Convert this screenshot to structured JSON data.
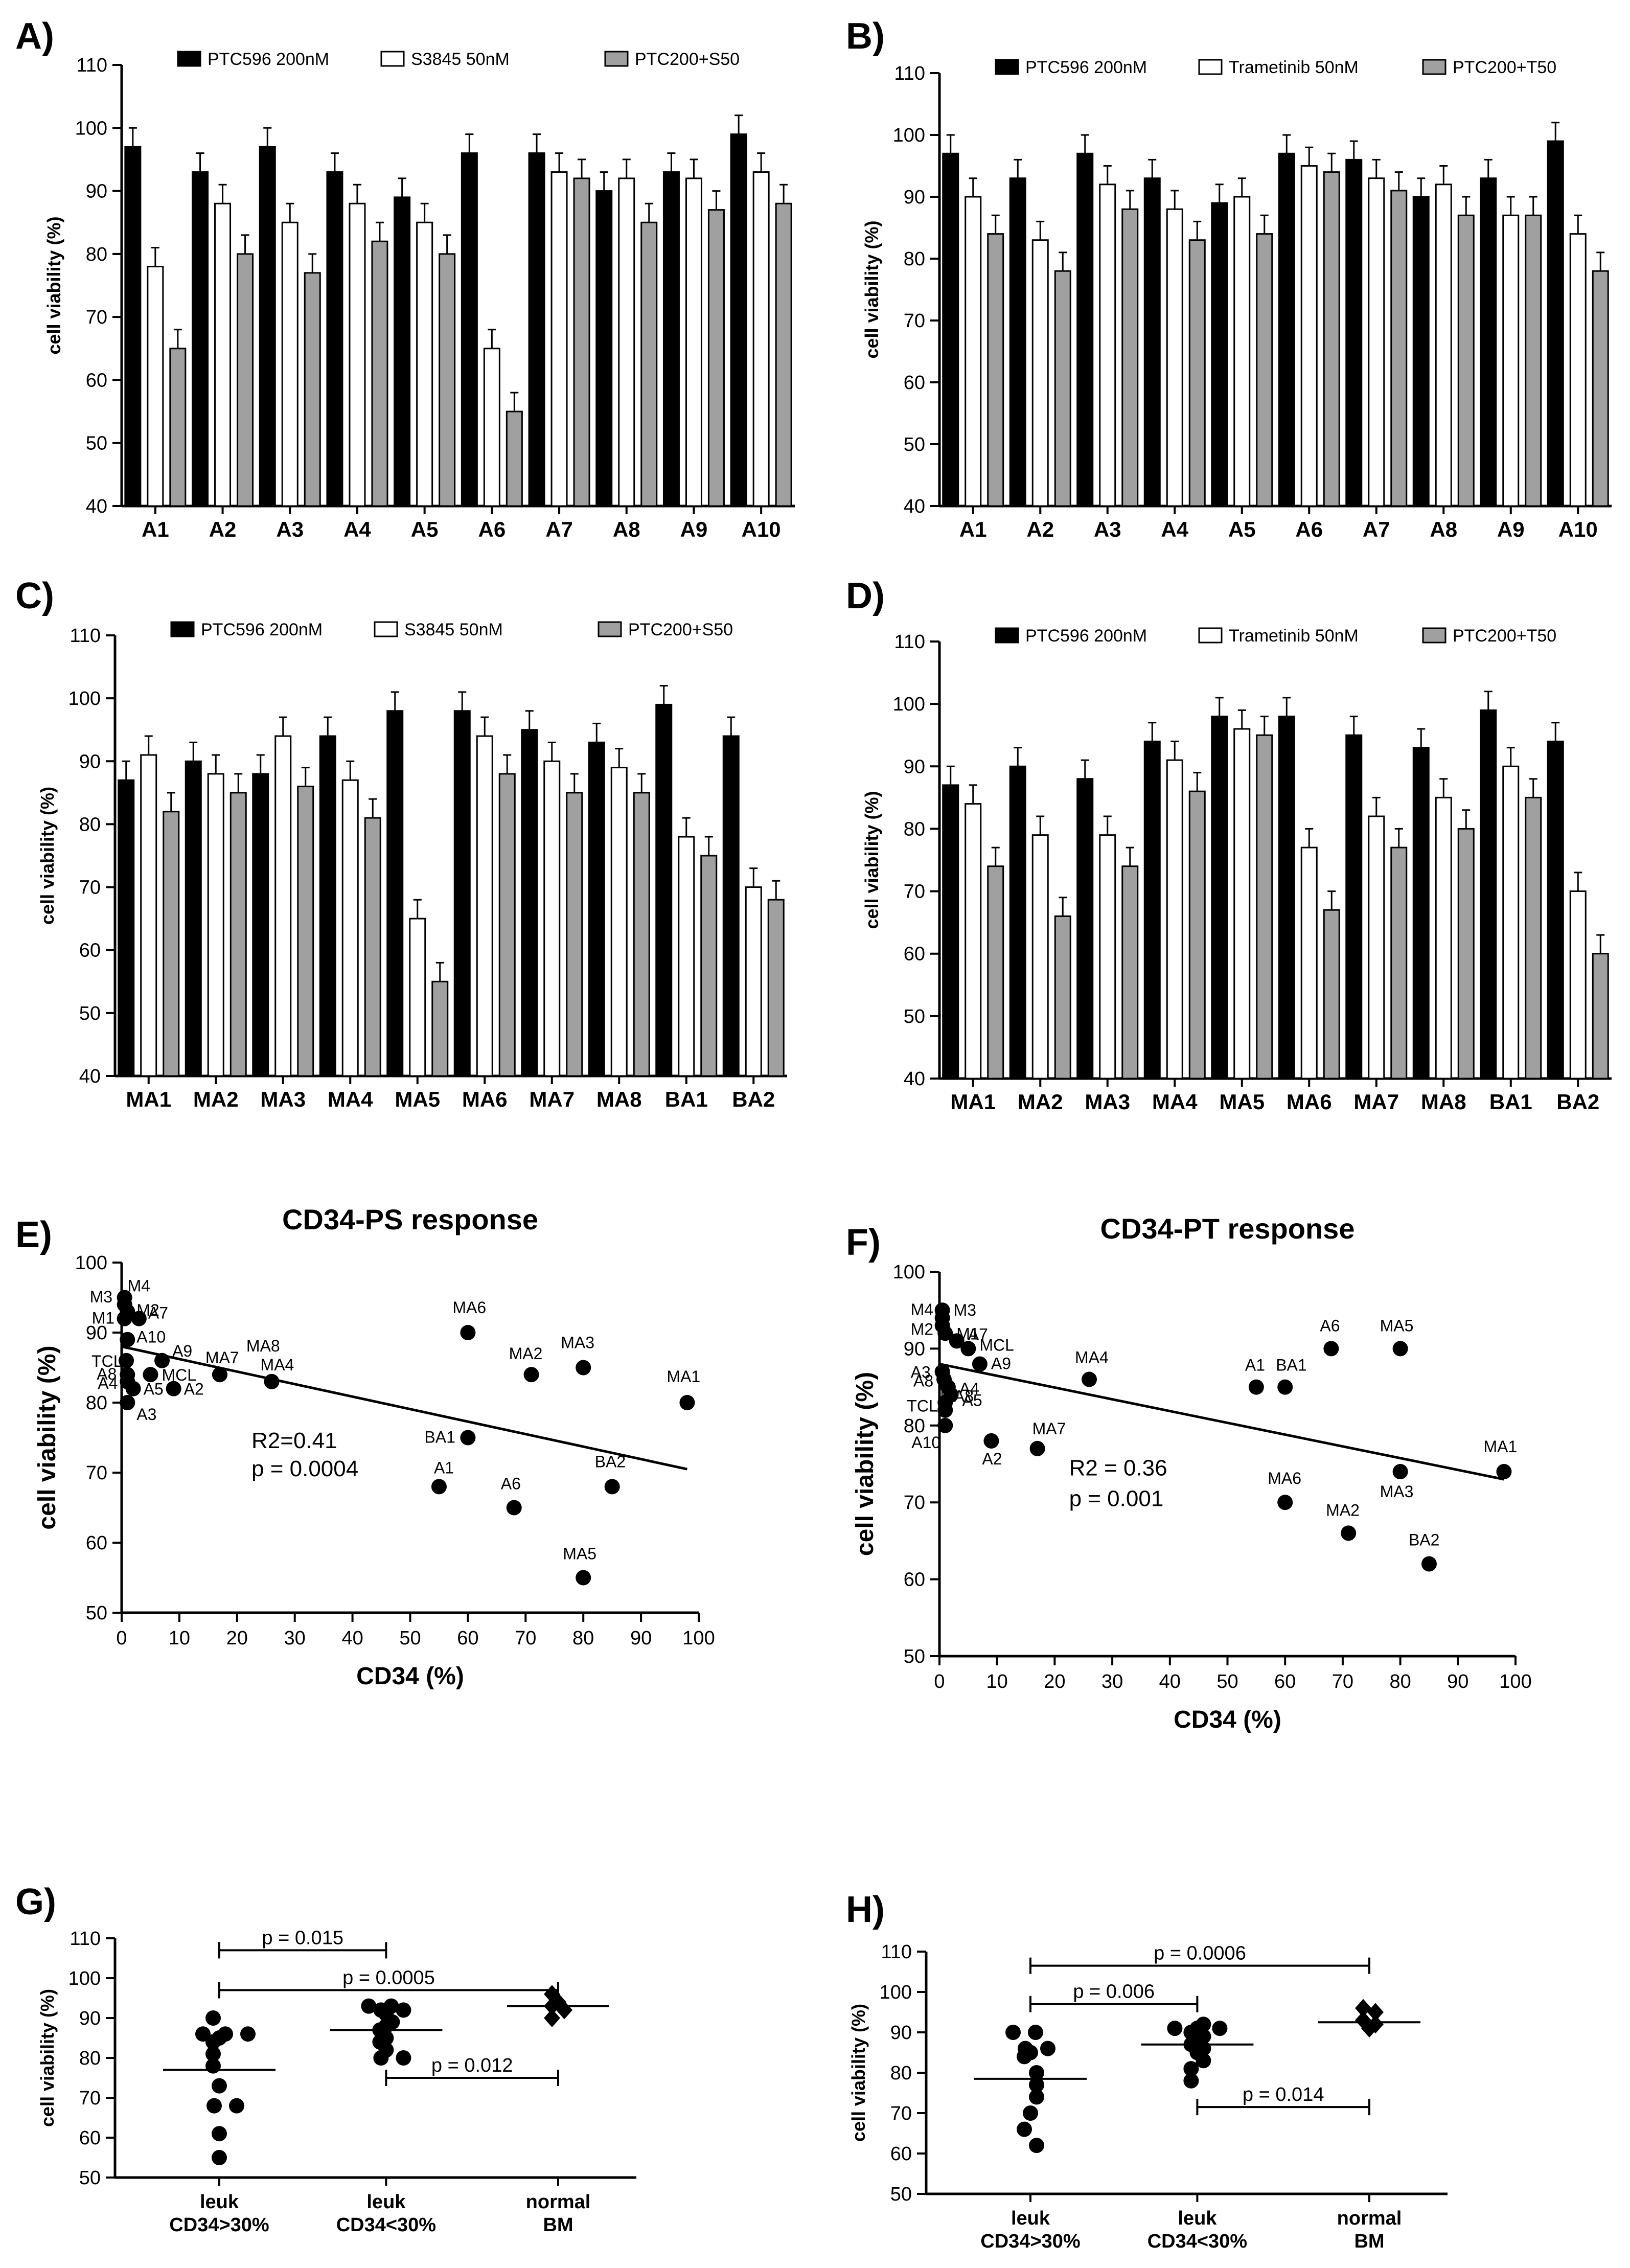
{
  "chart_data": [
    {
      "panel": "A)",
      "type": "bar",
      "ylabel": "cell viability (%)",
      "ylim": [
        40,
        110
      ],
      "yticks": [
        40,
        50,
        60,
        70,
        80,
        90,
        100,
        110
      ],
      "categories": [
        "A1",
        "A2",
        "A3",
        "A4",
        "A5",
        "A6",
        "A7",
        "A8",
        "A9",
        "A10"
      ],
      "series": [
        {
          "name": "PTC596 200nM",
          "color": "#000000",
          "values": [
            97,
            93,
            97,
            93,
            89,
            96,
            96,
            90,
            93,
            99
          ],
          "errors": [
            3,
            3,
            3,
            3,
            3,
            3,
            3,
            3,
            3,
            3
          ]
        },
        {
          "name": "S3845 50nM",
          "color": "#ffffff",
          "values": [
            78,
            88,
            85,
            88,
            85,
            65,
            93,
            92,
            92,
            93
          ],
          "errors": [
            3,
            3,
            3,
            3,
            3,
            3,
            3,
            3,
            3,
            3
          ]
        },
        {
          "name": "PTC200+S50",
          "color": "#a0a0a0",
          "values": [
            65,
            80,
            77,
            82,
            80,
            55,
            92,
            85,
            87,
            88
          ],
          "errors": [
            3,
            3,
            3,
            3,
            3,
            3,
            3,
            3,
            3,
            3
          ]
        }
      ]
    },
    {
      "panel": "B)",
      "type": "bar",
      "ylabel": "cell viability (%)",
      "ylim": [
        40,
        110
      ],
      "yticks": [
        40,
        50,
        60,
        70,
        80,
        90,
        100,
        110
      ],
      "categories": [
        "A1",
        "A2",
        "A3",
        "A4",
        "A5",
        "A6",
        "A7",
        "A8",
        "A9",
        "A10"
      ],
      "series": [
        {
          "name": "PTC596 200nM",
          "color": "#000000",
          "values": [
            97,
            93,
            97,
            93,
            89,
            97,
            96,
            90,
            93,
            99
          ],
          "errors": [
            3,
            3,
            3,
            3,
            3,
            3,
            3,
            3,
            3,
            3
          ]
        },
        {
          "name": "Trametinib 50nM",
          "color": "#ffffff",
          "values": [
            90,
            83,
            92,
            88,
            90,
            95,
            93,
            92,
            87,
            84
          ],
          "errors": [
            3,
            3,
            3,
            3,
            3,
            3,
            3,
            3,
            3,
            3
          ]
        },
        {
          "name": "PTC200+T50",
          "color": "#a0a0a0",
          "values": [
            84,
            78,
            88,
            83,
            84,
            94,
            91,
            87,
            87,
            78
          ],
          "errors": [
            3,
            3,
            3,
            3,
            3,
            3,
            3,
            3,
            3,
            3
          ]
        }
      ]
    },
    {
      "panel": "C)",
      "type": "bar",
      "ylabel": "cell viability (%)",
      "ylim": [
        40,
        110
      ],
      "yticks": [
        40,
        50,
        60,
        70,
        80,
        90,
        100,
        110
      ],
      "categories": [
        "MA1",
        "MA2",
        "MA3",
        "MA4",
        "MA5",
        "MA6",
        "MA7",
        "MA8",
        "BA1",
        "BA2"
      ],
      "series": [
        {
          "name": "PTC596 200nM",
          "color": "#000000",
          "values": [
            87,
            90,
            88,
            94,
            98,
            98,
            95,
            93,
            99,
            94
          ],
          "errors": [
            3,
            3,
            3,
            3,
            3,
            3,
            3,
            3,
            3,
            3
          ]
        },
        {
          "name": "S3845 50nM",
          "color": "#ffffff",
          "values": [
            91,
            88,
            94,
            87,
            65,
            94,
            90,
            89,
            78,
            70
          ],
          "errors": [
            3,
            3,
            3,
            3,
            3,
            3,
            3,
            3,
            3,
            3
          ]
        },
        {
          "name": "PTC200+S50",
          "color": "#a0a0a0",
          "values": [
            82,
            85,
            86,
            81,
            55,
            88,
            85,
            85,
            75,
            68
          ],
          "errors": [
            3,
            3,
            3,
            3,
            3,
            3,
            3,
            3,
            3,
            3
          ]
        }
      ]
    },
    {
      "panel": "D)",
      "type": "bar",
      "ylabel": "cell viability (%)",
      "ylim": [
        40,
        110
      ],
      "yticks": [
        40,
        50,
        60,
        70,
        80,
        90,
        100,
        110
      ],
      "categories": [
        "MA1",
        "MA2",
        "MA3",
        "MA4",
        "MA5",
        "MA6",
        "MA7",
        "MA8",
        "BA1",
        "BA2"
      ],
      "series": [
        {
          "name": "PTC596 200nM",
          "color": "#000000",
          "values": [
            87,
            90,
            88,
            94,
            98,
            98,
            95,
            93,
            99,
            94
          ],
          "errors": [
            3,
            3,
            3,
            3,
            3,
            3,
            3,
            3,
            3,
            3
          ]
        },
        {
          "name": "Trametinib 50nM",
          "color": "#ffffff",
          "values": [
            84,
            79,
            79,
            91,
            96,
            77,
            82,
            85,
            90,
            70
          ],
          "errors": [
            3,
            3,
            3,
            3,
            3,
            3,
            3,
            3,
            3,
            3
          ]
        },
        {
          "name": "PTC200+T50",
          "color": "#a0a0a0",
          "values": [
            74,
            66,
            74,
            86,
            95,
            67,
            77,
            80,
            85,
            60
          ],
          "errors": [
            3,
            3,
            3,
            3,
            3,
            3,
            3,
            3,
            3,
            3
          ]
        }
      ]
    },
    {
      "panel": "E)",
      "type": "scatter",
      "title": "CD34-PS response",
      "xlabel": "CD34 (%)",
      "ylabel": "cell viability (%)",
      "xlim": [
        0,
        100
      ],
      "ylim": [
        50,
        100
      ],
      "xticks": [
        0,
        10,
        20,
        30,
        40,
        50,
        60,
        70,
        80,
        90,
        100
      ],
      "yticks": [
        50,
        60,
        70,
        80,
        90,
        100
      ],
      "annotation": [
        "R2=0.41",
        "p = 0.0004"
      ],
      "regression": {
        "x": [
          0,
          98
        ],
        "y": [
          88,
          70.5
        ]
      },
      "points": [
        {
          "label": "M4",
          "x": 0.5,
          "y": 95
        },
        {
          "label": "M3",
          "x": 0.5,
          "y": 94
        },
        {
          "label": "M2",
          "x": 1,
          "y": 93
        },
        {
          "label": "M1",
          "x": 0.5,
          "y": 92
        },
        {
          "label": "A7",
          "x": 3,
          "y": 92
        },
        {
          "label": "A10",
          "x": 1,
          "y": 89
        },
        {
          "label": "TCL",
          "x": 0.8,
          "y": 86
        },
        {
          "label": "A9",
          "x": 7,
          "y": 86
        },
        {
          "label": "A8",
          "x": 1,
          "y": 84
        },
        {
          "label": "MCL",
          "x": 5,
          "y": 84
        },
        {
          "label": "A4",
          "x": 1,
          "y": 83
        },
        {
          "label": "A5",
          "x": 2,
          "y": 82
        },
        {
          "label": "A2",
          "x": 9,
          "y": 82
        },
        {
          "label": "A3",
          "x": 1,
          "y": 80
        },
        {
          "label": "MA7",
          "x": 17,
          "y": 84
        },
        {
          "label": "MA8",
          "x": 17,
          "y": 84
        },
        {
          "label": "MA4",
          "x": 26,
          "y": 83
        },
        {
          "label": "MA6",
          "x": 60,
          "y": 90
        },
        {
          "label": "MA2",
          "x": 71,
          "y": 84
        },
        {
          "label": "MA3",
          "x": 80,
          "y": 85
        },
        {
          "label": "MA1",
          "x": 98,
          "y": 80
        },
        {
          "label": "BA1",
          "x": 60,
          "y": 75
        },
        {
          "label": "A1",
          "x": 55,
          "y": 68
        },
        {
          "label": "A6",
          "x": 68,
          "y": 65
        },
        {
          "label": "BA2",
          "x": 85,
          "y": 68
        },
        {
          "label": "MA5",
          "x": 80,
          "y": 55
        }
      ]
    },
    {
      "panel": "F)",
      "type": "scatter",
      "title": "CD34-PT response",
      "xlabel": "CD34 (%)",
      "ylabel": "cell viability (%)",
      "xlim": [
        0,
        100
      ],
      "ylim": [
        50,
        100
      ],
      "xticks": [
        0,
        10,
        20,
        30,
        40,
        50,
        60,
        70,
        80,
        90,
        100
      ],
      "yticks": [
        50,
        60,
        70,
        80,
        90,
        100
      ],
      "annotation": [
        "R2 = 0.36",
        "p = 0.001"
      ],
      "regression": {
        "x": [
          0,
          98
        ],
        "y": [
          88,
          73
        ]
      },
      "points": [
        {
          "label": "M4",
          "x": 0.5,
          "y": 95
        },
        {
          "label": "M3",
          "x": 0.5,
          "y": 94
        },
        {
          "label": "M2",
          "x": 0.5,
          "y": 93
        },
        {
          "label": "M1",
          "x": 1,
          "y": 92
        },
        {
          "label": "A7",
          "x": 3,
          "y": 91
        },
        {
          "label": "MCL",
          "x": 5,
          "y": 90
        },
        {
          "label": "A9",
          "x": 7,
          "y": 88
        },
        {
          "label": "A3",
          "x": 0.5,
          "y": 87
        },
        {
          "label": "A8",
          "x": 0.8,
          "y": 86
        },
        {
          "label": "A4",
          "x": 1.5,
          "y": 85
        },
        {
          "label": "TCL",
          "x": 1,
          "y": 83
        },
        {
          "label": "A5",
          "x": 2,
          "y": 84
        },
        {
          "label": "MA8",
          "x": 1,
          "y": 82
        },
        {
          "label": "A10",
          "x": 1,
          "y": 80
        },
        {
          "label": "A2",
          "x": 9,
          "y": 78
        },
        {
          "label": "MA7",
          "x": 17,
          "y": 77
        },
        {
          "label": "MA4",
          "x": 26,
          "y": 86
        },
        {
          "label": "A1",
          "x": 55,
          "y": 85
        },
        {
          "label": "BA1",
          "x": 60,
          "y": 85
        },
        {
          "label": "A6",
          "x": 68,
          "y": 90
        },
        {
          "label": "MA5",
          "x": 80,
          "y": 90
        },
        {
          "label": "MA1",
          "x": 98,
          "y": 74
        },
        {
          "label": "MA3",
          "x": 80,
          "y": 74
        },
        {
          "label": "MA6",
          "x": 60,
          "y": 70
        },
        {
          "label": "MA2",
          "x": 71,
          "y": 66
        },
        {
          "label": "BA2",
          "x": 85,
          "y": 62
        }
      ]
    },
    {
      "panel": "G)",
      "type": "scatter",
      "ylabel": "cell viability (%)",
      "ylim": [
        50,
        110
      ],
      "yticks": [
        50,
        60,
        70,
        80,
        90,
        100,
        110
      ],
      "groups": [
        {
          "label_line1": "leuk",
          "label_line2": "CD34>30%",
          "marker": "circle",
          "mean": 77,
          "values": [
            90,
            86,
            86,
            86,
            85,
            84,
            81,
            78,
            73,
            68,
            68,
            61,
            55
          ]
        },
        {
          "label_line1": "leuk",
          "label_line2": "CD34<30%",
          "marker": "circle",
          "mean": 87,
          "values": [
            93,
            93,
            92,
            92,
            91,
            89,
            88,
            87,
            85,
            84,
            82,
            80,
            80
          ]
        },
        {
          "label_line1": "normal",
          "label_line2": "BM",
          "marker": "diamond",
          "mean": 93,
          "values": [
            96,
            94,
            93,
            92,
            90
          ]
        }
      ],
      "comparisons": [
        {
          "from": 0,
          "to": 1,
          "p": "p = 0.015",
          "y": 107
        },
        {
          "from": 0,
          "to": 2,
          "p": "p = 0.0005",
          "y": 97
        },
        {
          "from": 1,
          "to": 2,
          "p": "p = 0.012",
          "y": 75
        }
      ]
    },
    {
      "panel": "H)",
      "type": "scatter",
      "ylabel": "cell viability (%)",
      "ylim": [
        50,
        110
      ],
      "yticks": [
        50,
        60,
        70,
        80,
        90,
        100,
        110
      ],
      "groups": [
        {
          "label_line1": "leuk",
          "label_line2": "CD34>30%",
          "marker": "circle",
          "mean": 78.5,
          "values": [
            90,
            90,
            86,
            86,
            85,
            84,
            80,
            77,
            74,
            70,
            66,
            62
          ]
        },
        {
          "label_line1": "leuk",
          "label_line2": "CD34<30%",
          "marker": "circle",
          "mean": 87,
          "values": [
            92,
            91,
            91,
            91,
            90,
            89,
            88,
            87,
            86,
            85,
            83,
            81,
            78
          ]
        },
        {
          "label_line1": "normal",
          "label_line2": "BM",
          "marker": "diamond",
          "mean": 92.5,
          "values": [
            96,
            95,
            93,
            92,
            91
          ]
        }
      ],
      "comparisons": [
        {
          "from": 0,
          "to": 2,
          "p": "p = 0.0006",
          "y": 106.5
        },
        {
          "from": 0,
          "to": 1,
          "p": "p = 0.006",
          "y": 97
        },
        {
          "from": 1,
          "to": 2,
          "p": "p = 0.014",
          "y": 71.5
        }
      ]
    }
  ]
}
